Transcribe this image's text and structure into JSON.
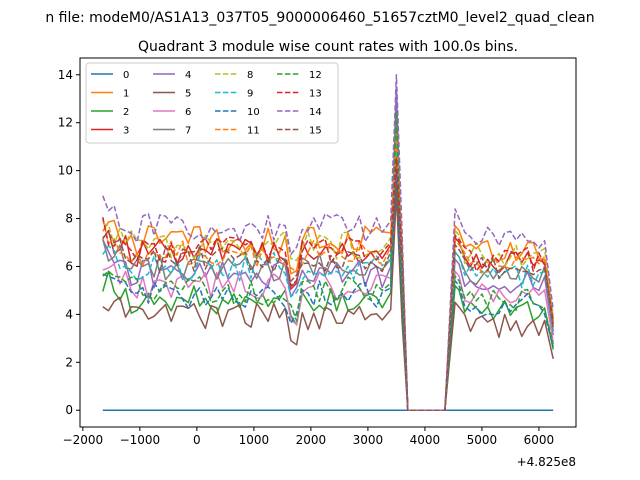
{
  "chart_data": {
    "type": "line",
    "suptitle": "n file: modeM0/AS1A13_037T05_9000006460_51657cztM0_level2_quad_clean",
    "title": "Quadrant 3 module wise count rates with 100.0s bins.",
    "xlabel": "",
    "ylabel": "",
    "x_offset_label": "+4.825e8",
    "xlim": [
      -2050,
      6650
    ],
    "ylim": [
      -0.7,
      14.7
    ],
    "x_ticks": [
      -2000,
      -1000,
      0,
      1000,
      2000,
      3000,
      4000,
      5000,
      6000
    ],
    "y_ticks": [
      0,
      2,
      4,
      6,
      8,
      10,
      12,
      14
    ],
    "grid": false,
    "legend_position": "top-left",
    "legend_columns": 4,
    "series": [
      {
        "name": "0",
        "color": "#1f77b4",
        "dash": "solid"
      },
      {
        "name": "1",
        "color": "#ff7f0e",
        "dash": "solid"
      },
      {
        "name": "2",
        "color": "#2ca02c",
        "dash": "solid"
      },
      {
        "name": "3",
        "color": "#d62728",
        "dash": "solid"
      },
      {
        "name": "4",
        "color": "#9467bd",
        "dash": "solid"
      },
      {
        "name": "5",
        "color": "#8c564b",
        "dash": "solid"
      },
      {
        "name": "6",
        "color": "#e377c2",
        "dash": "solid"
      },
      {
        "name": "7",
        "color": "#7f7f7f",
        "dash": "solid"
      },
      {
        "name": "8",
        "color": "#bcbd22",
        "dash": "dashed"
      },
      {
        "name": "9",
        "color": "#17becf",
        "dash": "dashed"
      },
      {
        "name": "10",
        "color": "#1f77b4",
        "dash": "dashed"
      },
      {
        "name": "11",
        "color": "#ff7f0e",
        "dash": "dashed"
      },
      {
        "name": "12",
        "color": "#2ca02c",
        "dash": "dashed"
      },
      {
        "name": "13",
        "color": "#d62728",
        "dash": "dashed"
      },
      {
        "name": "14",
        "color": "#9467bd",
        "dash": "dashed"
      },
      {
        "name": "15",
        "color": "#8c564b",
        "dash": "dashed"
      }
    ]
  }
}
